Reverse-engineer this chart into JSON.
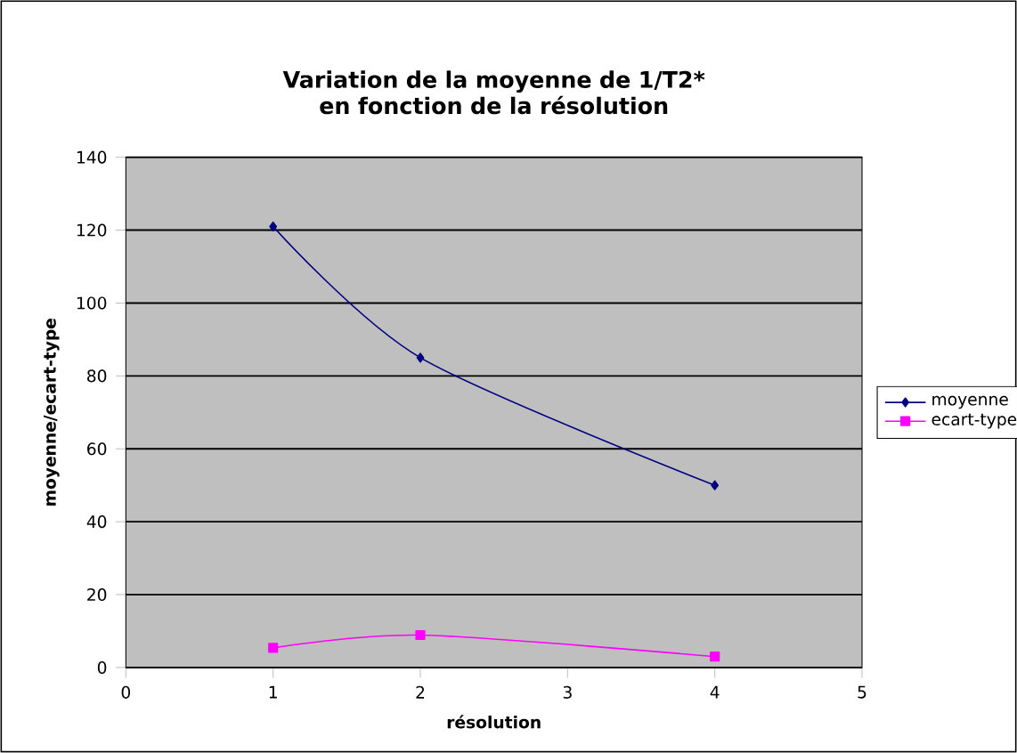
{
  "chart_data": {
    "type": "line",
    "title": "Variation de la moyenne de 1/T2* en fonction de la résolution",
    "xlabel": "résolution",
    "ylabel": "moyenne/ecart-type",
    "xlim": [
      0,
      5
    ],
    "xticks": [
      0,
      1,
      2,
      3,
      4,
      5
    ],
    "ylim": [
      0,
      140
    ],
    "yticks": [
      0,
      20,
      40,
      60,
      80,
      100,
      120,
      140
    ],
    "grid": "y",
    "legend": "right",
    "series": [
      {
        "name": "moyenne",
        "color": "#000080",
        "marker": "diamond",
        "x": [
          1,
          2,
          4
        ],
        "values": [
          121,
          85,
          50
        ]
      },
      {
        "name": "ecart-type",
        "color": "#ff00ff",
        "marker": "square",
        "x": [
          1,
          2,
          4
        ],
        "values": [
          5.4,
          8.9,
          3
        ]
      }
    ]
  }
}
